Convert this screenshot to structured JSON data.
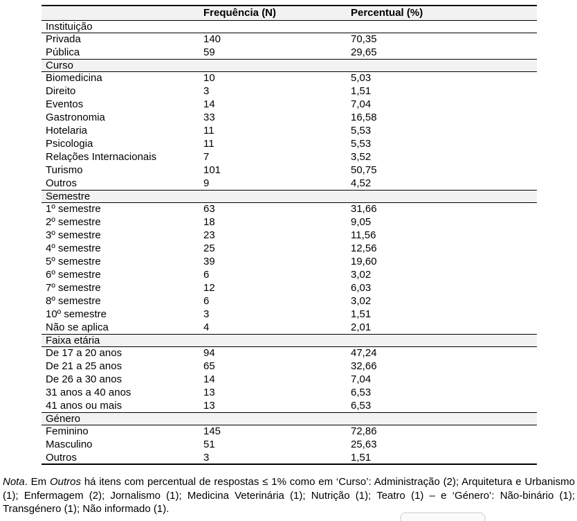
{
  "table": {
    "header": {
      "stub": "",
      "frequency": "Frequência (N)",
      "percent": "Percentual (%)"
    },
    "sections": [
      {
        "name": "Instituição",
        "shaded": false,
        "rows": [
          {
            "label": "Privada",
            "n": "140",
            "pct": "70,35"
          },
          {
            "label": "Pública",
            "n": "59",
            "pct": "29,65"
          }
        ]
      },
      {
        "name": "Curso",
        "shaded": true,
        "rows": [
          {
            "label": "Biomedicina",
            "n": "10",
            "pct": "5,03"
          },
          {
            "label": "Direito",
            "n": "3",
            "pct": "1,51"
          },
          {
            "label": "Eventos",
            "n": "14",
            "pct": "7,04"
          },
          {
            "label": "Gastronomia",
            "n": "33",
            "pct": "16,58"
          },
          {
            "label": "Hotelaria",
            "n": "11",
            "pct": "5,53"
          },
          {
            "label": "Psicologia",
            "n": "11",
            "pct": "5,53"
          },
          {
            "label": "Relações Internacionais",
            "n": "7",
            "pct": "3,52"
          },
          {
            "label": "Turismo",
            "n": "101",
            "pct": "50,75"
          },
          {
            "label": "Outros",
            "n": "9",
            "pct": "4,52"
          }
        ]
      },
      {
        "name": "Semestre",
        "shaded": true,
        "rows": [
          {
            "label": "1º semestre",
            "n": "63",
            "pct": "31,66"
          },
          {
            "label": "2º semestre",
            "n": "18",
            "pct": "9,05"
          },
          {
            "label": "3º semestre",
            "n": "23",
            "pct": "11,56"
          },
          {
            "label": "4º semestre",
            "n": "25",
            "pct": "12,56"
          },
          {
            "label": "5º semestre",
            "n": "39",
            "pct": "19,60"
          },
          {
            "label": "6º semestre",
            "n": "6",
            "pct": "3,02"
          },
          {
            "label": "7º semestre",
            "n": "12",
            "pct": "6,03"
          },
          {
            "label": "8º semestre",
            "n": "6",
            "pct": "3,02"
          },
          {
            "label": "10º semestre",
            "n": "3",
            "pct": "1,51"
          },
          {
            "label": "Não se aplica",
            "n": "4",
            "pct": "2,01"
          }
        ]
      },
      {
        "name": "Faixa etária",
        "shaded": true,
        "rows": [
          {
            "label": "De 17 a 20 anos",
            "n": "94",
            "pct": "47,24"
          },
          {
            "label": "De 21 a 25 anos",
            "n": "65",
            "pct": "32,66"
          },
          {
            "label": "De 26 a 30 anos",
            "n": "14",
            "pct": "7,04"
          },
          {
            "label": "31 anos a 40 anos",
            "n": "13",
            "pct": "6,53"
          },
          {
            "label": "41 anos ou mais",
            "n": "13",
            "pct": "6,53"
          }
        ]
      },
      {
        "name": "Género",
        "shaded": true,
        "rows": [
          {
            "label": "Feminino",
            "n": "145",
            "pct": "72,86"
          },
          {
            "label": "Masculino",
            "n": "51",
            "pct": "25,63"
          },
          {
            "label": "Outros",
            "n": "3",
            "pct": "1,51"
          }
        ]
      }
    ]
  },
  "note": {
    "segments": [
      {
        "text": "Nota",
        "italic": true
      },
      {
        "text": ". Em ",
        "italic": false
      },
      {
        "text": "Outros",
        "italic": true
      },
      {
        "text": " há itens com percentual de respostas ≤ 1% como em ‘Curso’: Administração (2); Arquitetura e Urbanismo (1); Enfermagem (2); Jornalismo (1); Medicina Veterinária (1); Nutrição (1); Teatro (1) – e ‘Género’: Não-binário (1); Transgénero (1); Não informado (1).",
        "italic": false
      }
    ]
  },
  "colors": {
    "section_band": "#f2f2f2",
    "table_border": "#000000",
    "page_background": "#ffffff",
    "partial_button_border": "#e3e3e3"
  },
  "chart_data": {
    "type": "table",
    "title": "",
    "columns": [
      "",
      "Frequência (N)",
      "Percentual (%)"
    ],
    "groups": [
      {
        "group": "Instituição",
        "rows": [
          [
            "Privada",
            140,
            70.35
          ],
          [
            "Pública",
            59,
            29.65
          ]
        ]
      },
      {
        "group": "Curso",
        "rows": [
          [
            "Biomedicina",
            10,
            5.03
          ],
          [
            "Direito",
            3,
            1.51
          ],
          [
            "Eventos",
            14,
            7.04
          ],
          [
            "Gastronomia",
            33,
            16.58
          ],
          [
            "Hotelaria",
            11,
            5.53
          ],
          [
            "Psicologia",
            11,
            5.53
          ],
          [
            "Relações Internacionais",
            7,
            3.52
          ],
          [
            "Turismo",
            101,
            50.75
          ],
          [
            "Outros",
            9,
            4.52
          ]
        ]
      },
      {
        "group": "Semestre",
        "rows": [
          [
            "1º semestre",
            63,
            31.66
          ],
          [
            "2º semestre",
            18,
            9.05
          ],
          [
            "3º semestre",
            23,
            11.56
          ],
          [
            "4º semestre",
            25,
            12.56
          ],
          [
            "5º semestre",
            39,
            19.6
          ],
          [
            "6º semestre",
            6,
            3.02
          ],
          [
            "7º semestre",
            12,
            6.03
          ],
          [
            "8º semestre",
            6,
            3.02
          ],
          [
            "10º semestre",
            3,
            1.51
          ],
          [
            "Não se aplica",
            4,
            2.01
          ]
        ]
      },
      {
        "group": "Faixa etária",
        "rows": [
          [
            "De 17 a 20 anos",
            94,
            47.24
          ],
          [
            "De 21 a 25 anos",
            65,
            32.66
          ],
          [
            "De 26 a 30 anos",
            14,
            7.04
          ],
          [
            "31 anos a 40 anos",
            13,
            6.53
          ],
          [
            "41 anos ou mais",
            13,
            6.53
          ]
        ]
      },
      {
        "group": "Género",
        "rows": [
          [
            "Feminino",
            145,
            72.86
          ],
          [
            "Masculino",
            51,
            25.63
          ],
          [
            "Outros",
            3,
            1.51
          ]
        ]
      }
    ]
  }
}
